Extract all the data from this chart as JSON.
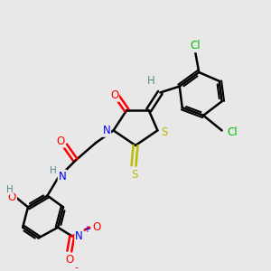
{
  "background_color": "#e8e8e8",
  "bond_color": "#000000",
  "label_colors": {
    "Cl": "#00bb00",
    "S": "#bbbb00",
    "N": "#0000ff",
    "O": "#ff0000",
    "H": "#558888",
    "C": "#000000"
  },
  "figsize": [
    3.0,
    3.0
  ],
  "dpi": 100
}
